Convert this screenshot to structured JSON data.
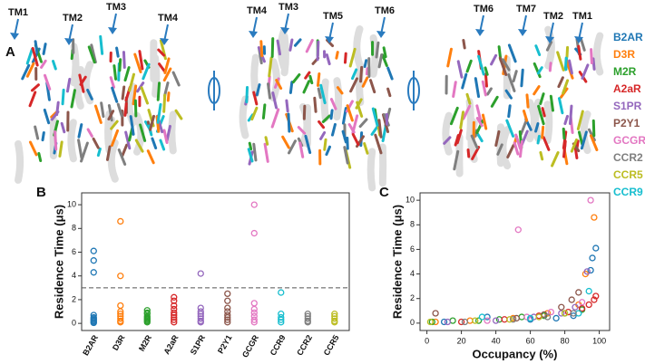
{
  "panel_a": {
    "label": "A",
    "views": [
      {
        "tm_labels": [
          "TM1",
          "TM2",
          "TM3",
          "TM4"
        ]
      },
      {
        "tm_labels": [
          "TM4",
          "TM3",
          "TM5",
          "TM6"
        ]
      },
      {
        "tm_labels": [
          "TM6",
          "TM7",
          "TM2",
          "TM1"
        ]
      }
    ],
    "legend": [
      {
        "name": "B2AR",
        "color": "#1f77b4"
      },
      {
        "name": "D3R",
        "color": "#ff7f0e"
      },
      {
        "name": "M2R",
        "color": "#2ca02c"
      },
      {
        "name": "A2aR",
        "color": "#d62728"
      },
      {
        "name": "S1PR",
        "color": "#9467bd"
      },
      {
        "name": "P2Y1",
        "color": "#8c564b"
      },
      {
        "name": "GCGR",
        "color": "#e377c2"
      },
      {
        "name": "CCR2",
        "color": "#7f7f7f"
      },
      {
        "name": "CCR5",
        "color": "#bcbd22"
      },
      {
        "name": "CCR9",
        "color": "#17becf"
      }
    ]
  },
  "chart_data": [
    {
      "type": "strip",
      "panel": "B",
      "y_label": "Residence Time (μs)",
      "ylim": [
        -0.6,
        11
      ],
      "yticks": [
        0,
        2,
        4,
        6,
        8,
        10
      ],
      "hline": 3,
      "series": [
        {
          "name": "B2AR",
          "color": "#1f77b4",
          "values": [
            6.1,
            5.3,
            4.3,
            0.7,
            0.5,
            0.4,
            0.3,
            0.2,
            0.1,
            0.05
          ]
        },
        {
          "name": "D3R",
          "color": "#ff7f0e",
          "values": [
            8.6,
            4.0,
            1.5,
            1.0,
            0.8,
            0.6,
            0.4,
            0.2,
            0.1
          ]
        },
        {
          "name": "M2R",
          "color": "#2ca02c",
          "values": [
            1.1,
            0.9,
            0.8,
            0.6,
            0.5,
            0.4,
            0.3,
            0.2,
            0.1
          ]
        },
        {
          "name": "A2aR",
          "color": "#d62728",
          "values": [
            2.2,
            1.9,
            1.5,
            1.2,
            0.9,
            0.7,
            0.5,
            0.3,
            0.1
          ]
        },
        {
          "name": "S1PR",
          "color": "#9467bd",
          "values": [
            4.2,
            1.3,
            1.0,
            0.8,
            0.6,
            0.4,
            0.2,
            0.1
          ]
        },
        {
          "name": "P2Y1",
          "color": "#8c564b",
          "values": [
            2.5,
            1.9,
            1.3,
            1.0,
            0.7,
            0.5,
            0.3,
            0.1
          ]
        },
        {
          "name": "GCGR",
          "color": "#e377c2",
          "values": [
            10.0,
            7.6,
            1.7,
            1.2,
            0.9,
            0.6,
            0.3,
            0.1
          ]
        },
        {
          "name": "CCR9",
          "color": "#17becf",
          "values": [
            2.6,
            0.8,
            0.5,
            0.3,
            0.1
          ]
        },
        {
          "name": "CCR2",
          "color": "#7f7f7f",
          "values": [
            0.8,
            0.6,
            0.4,
            0.2,
            0.1
          ]
        },
        {
          "name": "CCR5",
          "color": "#bcbd22",
          "values": [
            0.8,
            0.6,
            0.4,
            0.2,
            0.1
          ]
        }
      ]
    },
    {
      "type": "scatter",
      "panel": "C",
      "x_label": "Occupancy (%)",
      "y_label": "Residence Time (μs)",
      "xlim": [
        -4,
        106
      ],
      "ylim": [
        -0.6,
        10.6
      ],
      "xticks": [
        0,
        20,
        40,
        60,
        80,
        100
      ],
      "yticks": [
        0,
        2,
        4,
        6,
        8,
        10
      ],
      "series": [
        {
          "color": "#1f77b4",
          "x": [
            98,
            96,
            95,
            35,
            60,
            75,
            85,
            10
          ],
          "values": [
            6.1,
            5.3,
            4.3,
            0.5,
            0.3,
            0.4,
            0.6,
            0.1
          ]
        },
        {
          "color": "#ff7f0e",
          "x": [
            97,
            92,
            88,
            70,
            50,
            25,
            5
          ],
          "values": [
            8.6,
            4.0,
            1.5,
            0.8,
            0.4,
            0.2,
            0.1
          ]
        },
        {
          "color": "#2ca02c",
          "x": [
            90,
            80,
            68,
            55,
            42,
            30,
            15,
            3
          ],
          "values": [
            1.1,
            0.8,
            0.6,
            0.5,
            0.3,
            0.2,
            0.2,
            0.1
          ]
        },
        {
          "color": "#d62728",
          "x": [
            98,
            97,
            94,
            90,
            82,
            65,
            45,
            20
          ],
          "values": [
            2.2,
            1.9,
            1.5,
            1.2,
            0.9,
            0.6,
            0.3,
            0.1
          ]
        },
        {
          "color": "#9467bd",
          "x": [
            93,
            86,
            78,
            62,
            40,
            12
          ],
          "values": [
            4.2,
            1.3,
            0.8,
            0.5,
            0.2,
            0.1
          ]
        },
        {
          "color": "#8c564b",
          "x": [
            88,
            84,
            78,
            68,
            52,
            5
          ],
          "values": [
            2.5,
            1.9,
            1.3,
            0.7,
            0.4,
            0.8
          ]
        },
        {
          "color": "#e377c2",
          "x": [
            95,
            53,
            90,
            72,
            58,
            35
          ],
          "values": [
            10.0,
            7.6,
            1.7,
            0.9,
            0.5,
            0.2
          ]
        },
        {
          "color": "#17becf",
          "x": [
            94,
            88,
            60,
            32
          ],
          "values": [
            2.6,
            0.8,
            0.4,
            0.5
          ]
        },
        {
          "color": "#7f7f7f",
          "x": [
            85,
            70,
            50,
            22
          ],
          "values": [
            0.8,
            0.5,
            0.3,
            0.1
          ]
        },
        {
          "color": "#bcbd22",
          "x": [
            80,
            65,
            48,
            28,
            2
          ],
          "values": [
            0.8,
            0.5,
            0.3,
            0.2,
            0.1
          ]
        }
      ]
    }
  ]
}
